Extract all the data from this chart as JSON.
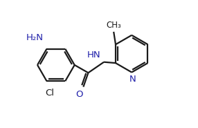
{
  "bg_color": "#ffffff",
  "bond_color": "#1a1a1a",
  "heteroatom_color": "#2020aa",
  "line_width": 1.6,
  "font_size": 9.5,
  "small_font_size": 8.5,
  "fig_width": 2.86,
  "fig_height": 1.85,
  "dpi": 100,
  "xlim": [
    0,
    10
  ],
  "ylim": [
    0,
    6.5
  ]
}
